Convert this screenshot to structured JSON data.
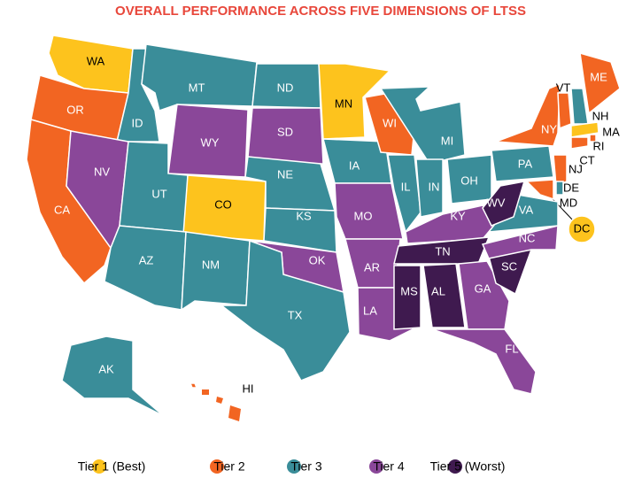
{
  "title": "OVERALL PERFORMANCE ACROSS FIVE DIMENSIONS OF LTSS",
  "legend": [
    {
      "label": "Tier 1 (Best)",
      "color": "#fdc31d"
    },
    {
      "label": "Tier 2",
      "color": "#f26522"
    },
    {
      "label": "Tier 3",
      "color": "#3a8d99"
    },
    {
      "label": "Tier 4",
      "color": "#8a4799"
    },
    {
      "label": "Tier 5 (Worst)",
      "color": "#3f1a4f"
    }
  ],
  "states": [
    {
      "abbr": "WA",
      "tier": 1
    },
    {
      "abbr": "OR",
      "tier": 2
    },
    {
      "abbr": "CA",
      "tier": 2
    },
    {
      "abbr": "ID",
      "tier": 3
    },
    {
      "abbr": "NV",
      "tier": 4
    },
    {
      "abbr": "MT",
      "tier": 3
    },
    {
      "abbr": "WY",
      "tier": 4
    },
    {
      "abbr": "UT",
      "tier": 3
    },
    {
      "abbr": "CO",
      "tier": 1
    },
    {
      "abbr": "AZ",
      "tier": 3
    },
    {
      "abbr": "NM",
      "tier": 3
    },
    {
      "abbr": "ND",
      "tier": 3
    },
    {
      "abbr": "SD",
      "tier": 4
    },
    {
      "abbr": "NE",
      "tier": 3
    },
    {
      "abbr": "KS",
      "tier": 3
    },
    {
      "abbr": "OK",
      "tier": 4
    },
    {
      "abbr": "TX",
      "tier": 3
    },
    {
      "abbr": "MN",
      "tier": 1
    },
    {
      "abbr": "IA",
      "tier": 3
    },
    {
      "abbr": "MO",
      "tier": 4
    },
    {
      "abbr": "AR",
      "tier": 4
    },
    {
      "abbr": "LA",
      "tier": 4
    },
    {
      "abbr": "WI",
      "tier": 2
    },
    {
      "abbr": "IL",
      "tier": 3
    },
    {
      "abbr": "MI",
      "tier": 3
    },
    {
      "abbr": "IN",
      "tier": 3
    },
    {
      "abbr": "OH",
      "tier": 3
    },
    {
      "abbr": "KY",
      "tier": 4
    },
    {
      "abbr": "TN",
      "tier": 5
    },
    {
      "abbr": "MS",
      "tier": 5
    },
    {
      "abbr": "AL",
      "tier": 5
    },
    {
      "abbr": "GA",
      "tier": 4
    },
    {
      "abbr": "FL",
      "tier": 4
    },
    {
      "abbr": "SC",
      "tier": 5
    },
    {
      "abbr": "NC",
      "tier": 4
    },
    {
      "abbr": "VA",
      "tier": 3
    },
    {
      "abbr": "WV",
      "tier": 5
    },
    {
      "abbr": "PA",
      "tier": 3
    },
    {
      "abbr": "NY",
      "tier": 2
    },
    {
      "abbr": "VT",
      "tier": 2
    },
    {
      "abbr": "NH",
      "tier": 3
    },
    {
      "abbr": "ME",
      "tier": 2
    },
    {
      "abbr": "MA",
      "tier": 1
    },
    {
      "abbr": "RI",
      "tier": 2
    },
    {
      "abbr": "CT",
      "tier": 2
    },
    {
      "abbr": "NJ",
      "tier": 2
    },
    {
      "abbr": "DE",
      "tier": 3
    },
    {
      "abbr": "MD",
      "tier": 2
    },
    {
      "abbr": "DC",
      "tier": 1
    },
    {
      "abbr": "AK",
      "tier": 3
    },
    {
      "abbr": "HI",
      "tier": 2
    }
  ]
}
